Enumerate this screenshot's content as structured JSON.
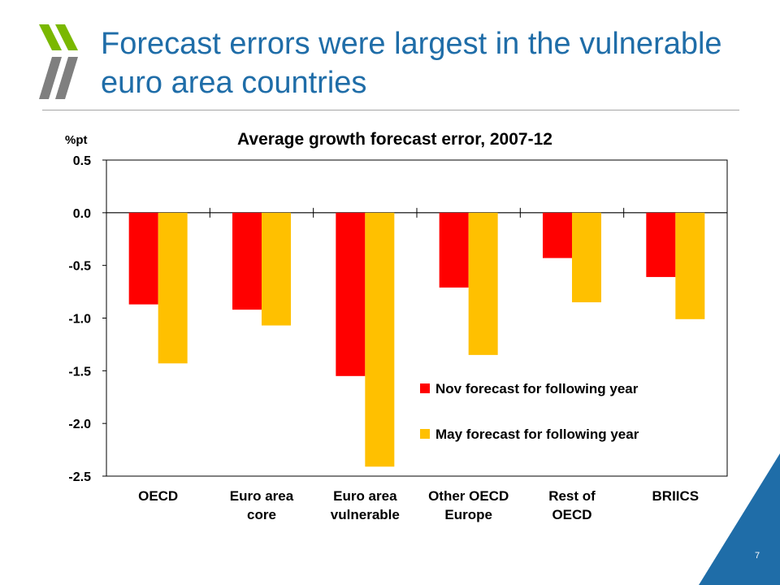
{
  "slide": {
    "title": "Forecast errors were largest in the vulnerable euro area countries",
    "page_number": "7",
    "logo": "oecd-chevron-logo"
  },
  "colors": {
    "title": "#1f6da8",
    "nov": "#ff0000",
    "may": "#ffc000",
    "corner": "#1f6da8",
    "logo": "#7ab800"
  },
  "chart_data": {
    "type": "bar",
    "title": "Average growth forecast error, 2007-12",
    "ylabel": "%pt",
    "xlabel": "",
    "ylim": [
      -2.5,
      0.5
    ],
    "yticks": [
      0.5,
      0.0,
      -0.5,
      -1.0,
      -1.5,
      -2.0,
      -2.5
    ],
    "ytick_labels": [
      "0.5",
      "0.0",
      "-0.5",
      "-1.0",
      "-1.5",
      "-2.0",
      "-2.5"
    ],
    "categories": [
      [
        "OECD"
      ],
      [
        "Euro area",
        "core"
      ],
      [
        "Euro area",
        "vulnerable"
      ],
      [
        "Other OECD",
        "Europe"
      ],
      [
        "Rest of",
        "OECD"
      ],
      [
        "BRIICS"
      ]
    ],
    "series": [
      {
        "name": "Nov forecast for following year",
        "values": [
          -0.87,
          -0.92,
          -1.55,
          -0.71,
          -0.43,
          -0.61
        ]
      },
      {
        "name": "May forecast for following year",
        "values": [
          -1.43,
          -1.07,
          -2.41,
          -1.35,
          -0.85,
          -1.01
        ]
      }
    ],
    "grid": false,
    "legend_position": "bottom-right"
  }
}
